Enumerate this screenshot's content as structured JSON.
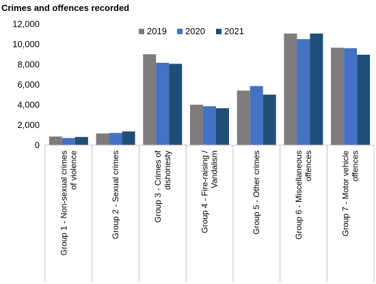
{
  "chart_data": {
    "type": "bar",
    "title": "Crimes and offences recorded",
    "xlabel": "",
    "ylabel": "",
    "ylim": [
      0,
      12000
    ],
    "yticks": [
      0,
      2000,
      4000,
      6000,
      8000,
      10000,
      12000
    ],
    "ytick_labels": [
      "0",
      "2,000",
      "4,000",
      "6,000",
      "8,000",
      "10,000",
      "12,000"
    ],
    "grid": false,
    "legend_position": "top-center",
    "categories": [
      [
        "Group 1 - Non-sexual crimes",
        "of violence"
      ],
      [
        "Group 2 - Sexual crimes"
      ],
      [
        "Group 3 - Crimes of",
        "dishonesty"
      ],
      [
        "Group 4 - Fire-raising /",
        "Vandalism"
      ],
      [
        "Group 5 - Other crimes"
      ],
      [
        "Group 6 - Miscellaneous",
        "offences"
      ],
      [
        "Group 7 - Motor vehicle",
        "offences"
      ]
    ],
    "series": [
      {
        "name": "2019",
        "color": "#7f7b7c",
        "values": [
          850,
          1150,
          9000,
          4000,
          5400,
          11050,
          9650
        ]
      },
      {
        "name": "2020",
        "color": "#4472c4",
        "values": [
          700,
          1200,
          8150,
          3850,
          5850,
          10500,
          9600
        ]
      },
      {
        "name": "2021",
        "color": "#1f4e79",
        "values": [
          800,
          1350,
          8050,
          3650,
          5000,
          11050,
          8950
        ]
      }
    ]
  }
}
